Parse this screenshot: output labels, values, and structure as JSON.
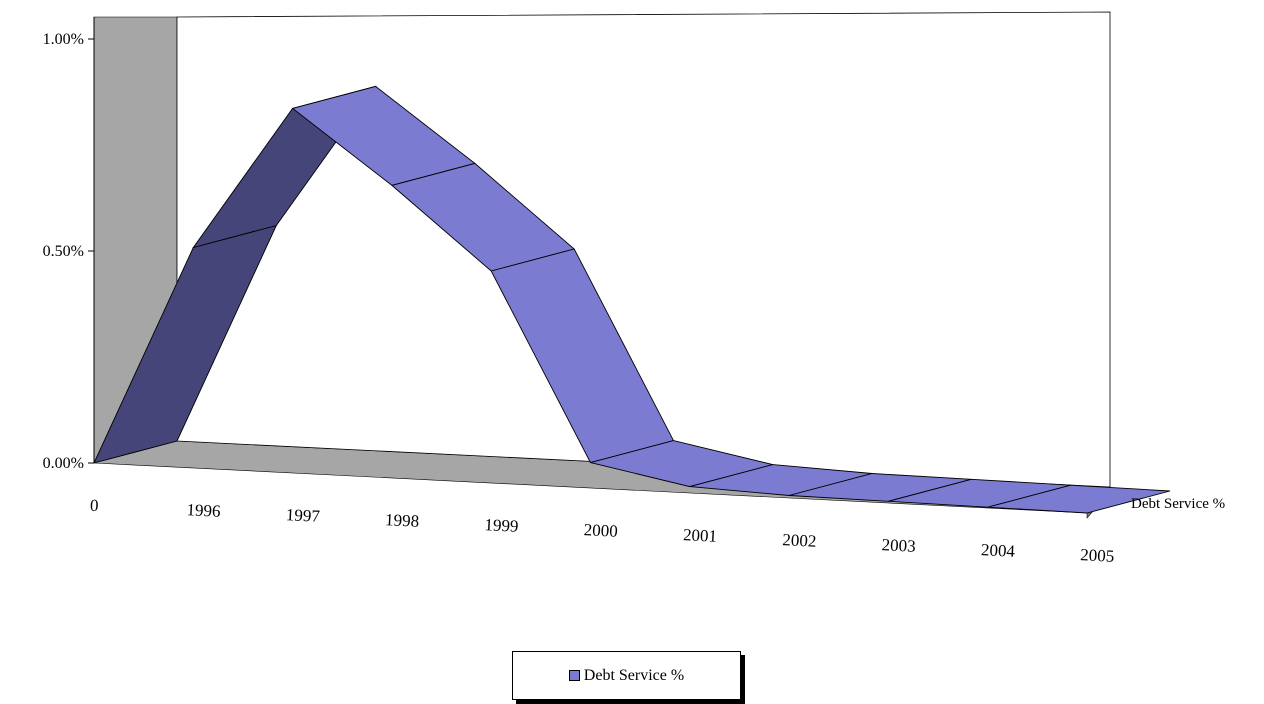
{
  "chart_data": {
    "type": "area",
    "view": "3d-ribbon",
    "categories": [
      "0",
      "1996",
      "1997",
      "1998",
      "1999",
      "2000",
      "2001",
      "2002",
      "2003",
      "2004",
      "2005"
    ],
    "series": [
      {
        "name": "Debt Service %",
        "values": [
          0.0,
          0.52,
          0.86,
          0.69,
          0.5,
          0.06,
          0.015,
          0.006,
          0.004,
          0.002,
          0.0
        ],
        "color": "#7b7bd1"
      }
    ],
    "y_ticks": [
      "0.00%",
      "0.50%",
      "1.00%"
    ],
    "ylim": [
      0,
      1.0
    ],
    "depth_axis_label": "Debt Service %",
    "legend_position": "bottom",
    "wall_color": "#a6a6a6",
    "side_color": "#45457a"
  },
  "legend": {
    "label": "Debt Service %"
  }
}
